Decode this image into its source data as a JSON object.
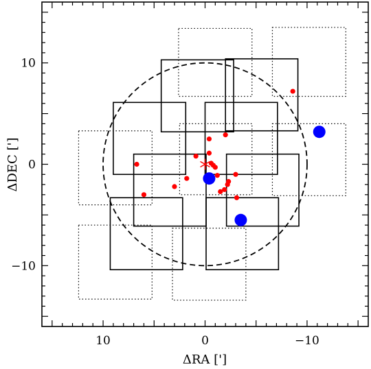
{
  "chart_data": {
    "type": "scatter",
    "title": "",
    "xlabel": "ΔRA [']",
    "ylabel": "ΔDEC [']",
    "xlim": [
      16,
      -16
    ],
    "ylim": [
      -16,
      16
    ],
    "x_ticks": [
      10,
      0,
      -10
    ],
    "y_ticks": [
      10,
      0,
      -10
    ],
    "x_tick_labels": [
      "10",
      "0",
      "−10"
    ],
    "y_tick_labels": [
      "10",
      "0",
      "−10"
    ],
    "grid": false,
    "colors": {
      "small_points": "#ff0000",
      "large_points": "#0000ff",
      "center_marker": "#ff0000",
      "fields": "#000000"
    },
    "circle": {
      "center": [
        0,
        0
      ],
      "radius": 10,
      "style": "dashed"
    },
    "center_marker": {
      "x": 0,
      "y": 0,
      "symbol": "asterisk"
    },
    "solid_fields": [
      {
        "x0": 4.3,
        "x1": -2.8,
        "y0": 3.2,
        "y1": 10.3
      },
      {
        "x0": -2.0,
        "x1": -9.1,
        "y0": 3.3,
        "y1": 10.4
      },
      {
        "x0": 9.0,
        "x1": 1.9,
        "y0": -1.0,
        "y1": 6.1
      },
      {
        "x0": 0.0,
        "x1": -7.1,
        "y0": -1.0,
        "y1": 6.1
      },
      {
        "x0": 7.0,
        "x1": -0.1,
        "y0": -6.1,
        "y1": 1.0
      },
      {
        "x0": -2.1,
        "x1": -9.2,
        "y0": -6.1,
        "y1": 1.0
      },
      {
        "x0": 9.3,
        "x1": 2.2,
        "y0": -10.4,
        "y1": -3.3
      },
      {
        "x0": -0.1,
        "x1": -7.2,
        "y0": -10.4,
        "y1": -3.3
      }
    ],
    "dotted_fields": [
      {
        "x0": 2.6,
        "x1": -4.6,
        "y0": 6.7,
        "y1": 13.4
      },
      {
        "x0": -6.6,
        "x1": -13.8,
        "y0": 6.7,
        "y1": 13.5
      },
      {
        "x0": 12.4,
        "x1": 5.2,
        "y0": -4.0,
        "y1": 3.3
      },
      {
        "x0": 2.5,
        "x1": -4.6,
        "y0": -3.0,
        "y1": 4.0
      },
      {
        "x0": -6.6,
        "x1": -13.8,
        "y0": -3.1,
        "y1": 4.0
      },
      {
        "x0": 12.4,
        "x1": 5.2,
        "y0": -13.3,
        "y1": -6.0
      },
      {
        "x0": 3.2,
        "x1": -4.0,
        "y0": -13.4,
        "y1": -6.3
      }
    ],
    "series": [
      {
        "marker": "small-dot",
        "x": [
          6.7,
          6.0,
          3.0,
          1.8,
          0.9,
          -0.4,
          -0.4,
          -0.6,
          -0.8,
          -1.0,
          -1.2,
          -1.5,
          -1.9,
          -2.3,
          -2.2,
          -2.0,
          -3.0,
          -3.1,
          -8.6
        ],
        "y": [
          0.0,
          -3.0,
          -2.2,
          -1.4,
          0.8,
          2.5,
          1.1,
          0.1,
          -0.1,
          -0.3,
          -1.1,
          -2.7,
          -2.5,
          -1.7,
          -2.0,
          2.9,
          -1.0,
          -3.3,
          7.2
        ]
      },
      {
        "marker": "large-dot",
        "x": [
          -0.4,
          -3.5,
          -11.2
        ],
        "y": [
          -1.4,
          -5.5,
          3.2
        ]
      }
    ]
  }
}
